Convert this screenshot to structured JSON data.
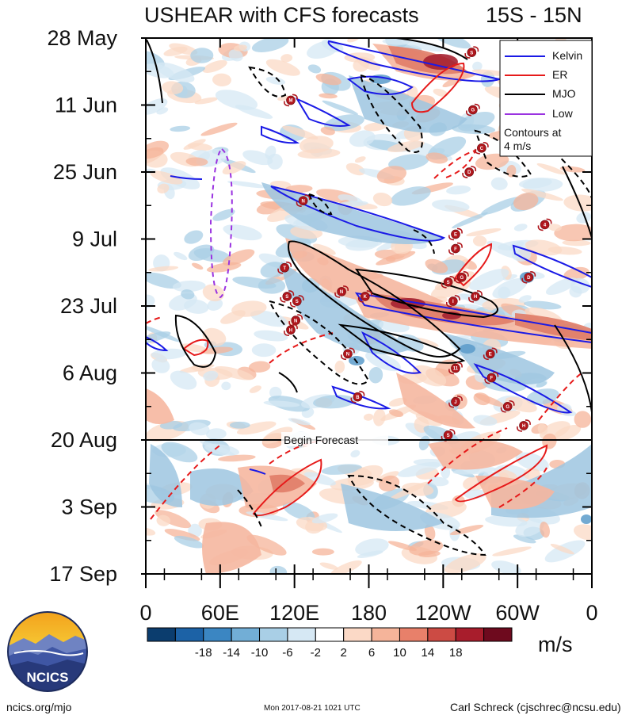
{
  "header": {
    "title": "USHEAR with CFS forecasts",
    "lat_band": "15S - 15N"
  },
  "chart_data": {
    "type": "heatmap",
    "title": "USHEAR with CFS forecasts",
    "subtitle": "15S - 15N",
    "x_axis": {
      "ticks": [
        "0",
        "60E",
        "120E",
        "180",
        "120W",
        "60W",
        "0"
      ],
      "range_deg_east": [
        0,
        360
      ]
    },
    "y_axis": {
      "ticks": [
        "28 May",
        "11 Jun",
        "25 Jun",
        "9 Jul",
        "23 Jul",
        "6 Aug",
        "20 Aug",
        "3 Sep",
        "17 Sep"
      ],
      "range": [
        "2017-05-28",
        "2017-09-17"
      ],
      "direction": "time increases downward"
    },
    "colorbar": {
      "labels": [
        "-18",
        "-14",
        "-10",
        "-6",
        "-2",
        "2",
        "6",
        "10",
        "14",
        "18"
      ],
      "colors": [
        "#0b3d6e",
        "#1c62a6",
        "#3b86c2",
        "#72aed6",
        "#a9cfe6",
        "#d6e8f4",
        "#ffffff",
        "#fbd9c6",
        "#f5b49a",
        "#e8806a",
        "#cc4b44",
        "#a81d2c",
        "#6e0a1e"
      ],
      "units": "m/s"
    },
    "legend": {
      "entries": [
        {
          "name": "Kelvin",
          "color": "#1a1ae6",
          "style": "solid"
        },
        {
          "name": "ER",
          "color": "#e61a1a",
          "style": "solid"
        },
        {
          "name": "MJO",
          "color": "#000000",
          "style": "solid"
        },
        {
          "name": "Low",
          "color": "#9a33e0",
          "style": "dashed"
        }
      ],
      "note_line1": "Contours at",
      "note_line2": "4 m/s",
      "placement": "top-right"
    },
    "forecast_marker": {
      "date": "2017-08-20",
      "label": "Begin Forecast"
    },
    "storms": [
      {
        "letter": "S",
        "lon": 263,
        "date": "2017-05-31"
      },
      {
        "letter": "M",
        "lon": 117,
        "date": "2017-06-10"
      },
      {
        "letter": "G",
        "lon": 264,
        "date": "2017-06-12"
      },
      {
        "letter": "C",
        "lon": 271,
        "date": "2017-06-20"
      },
      {
        "letter": "D",
        "lon": 261,
        "date": "2017-06-25"
      },
      {
        "letter": "N",
        "lon": 127,
        "date": "2017-07-01"
      },
      {
        "letter": "4",
        "lon": 322,
        "date": "2017-07-06"
      },
      {
        "letter": "E",
        "lon": 250,
        "date": "2017-07-08"
      },
      {
        "letter": "F",
        "lon": 250,
        "date": "2017-07-11"
      },
      {
        "letter": "T",
        "lon": 112,
        "date": "2017-07-15"
      },
      {
        "letter": "G",
        "lon": 255,
        "date": "2017-07-17"
      },
      {
        "letter": "D",
        "lon": 309,
        "date": "2017-07-17"
      },
      {
        "letter": "S",
        "lon": 244,
        "date": "2017-07-18"
      },
      {
        "letter": "N",
        "lon": 158,
        "date": "2017-07-20"
      },
      {
        "letter": "K",
        "lon": 177,
        "date": "2017-07-21"
      },
      {
        "letter": "S",
        "lon": 114,
        "date": "2017-07-21"
      },
      {
        "letter": "S",
        "lon": 122,
        "date": "2017-07-22"
      },
      {
        "letter": "H",
        "lon": 266,
        "date": "2017-07-21"
      },
      {
        "letter": "I",
        "lon": 248,
        "date": "2017-07-22"
      },
      {
        "letter": "N",
        "lon": 121,
        "date": "2017-07-26"
      },
      {
        "letter": "H",
        "lon": 117,
        "date": "2017-07-28"
      },
      {
        "letter": "N",
        "lon": 163,
        "date": "2017-08-02"
      },
      {
        "letter": "E",
        "lon": 278,
        "date": "2017-08-02"
      },
      {
        "letter": "11",
        "lon": 250,
        "date": "2017-08-05"
      },
      {
        "letter": "F",
        "lon": 279,
        "date": "2017-08-07"
      },
      {
        "letter": "B",
        "lon": 171,
        "date": "2017-08-11"
      },
      {
        "letter": "J",
        "lon": 250,
        "date": "2017-08-12"
      },
      {
        "letter": "G",
        "lon": 292,
        "date": "2017-08-13"
      },
      {
        "letter": "H",
        "lon": 305,
        "date": "2017-08-17"
      },
      {
        "letter": "S",
        "lon": 244,
        "date": "2017-08-19"
      }
    ]
  },
  "footer": {
    "logo_text": "NCICS",
    "url": "ncics.org/mjo",
    "timestamp": "Mon 2017-08-21 1021 UTC",
    "author": "Carl Schreck (cjschrec@ncsu.edu)"
  }
}
